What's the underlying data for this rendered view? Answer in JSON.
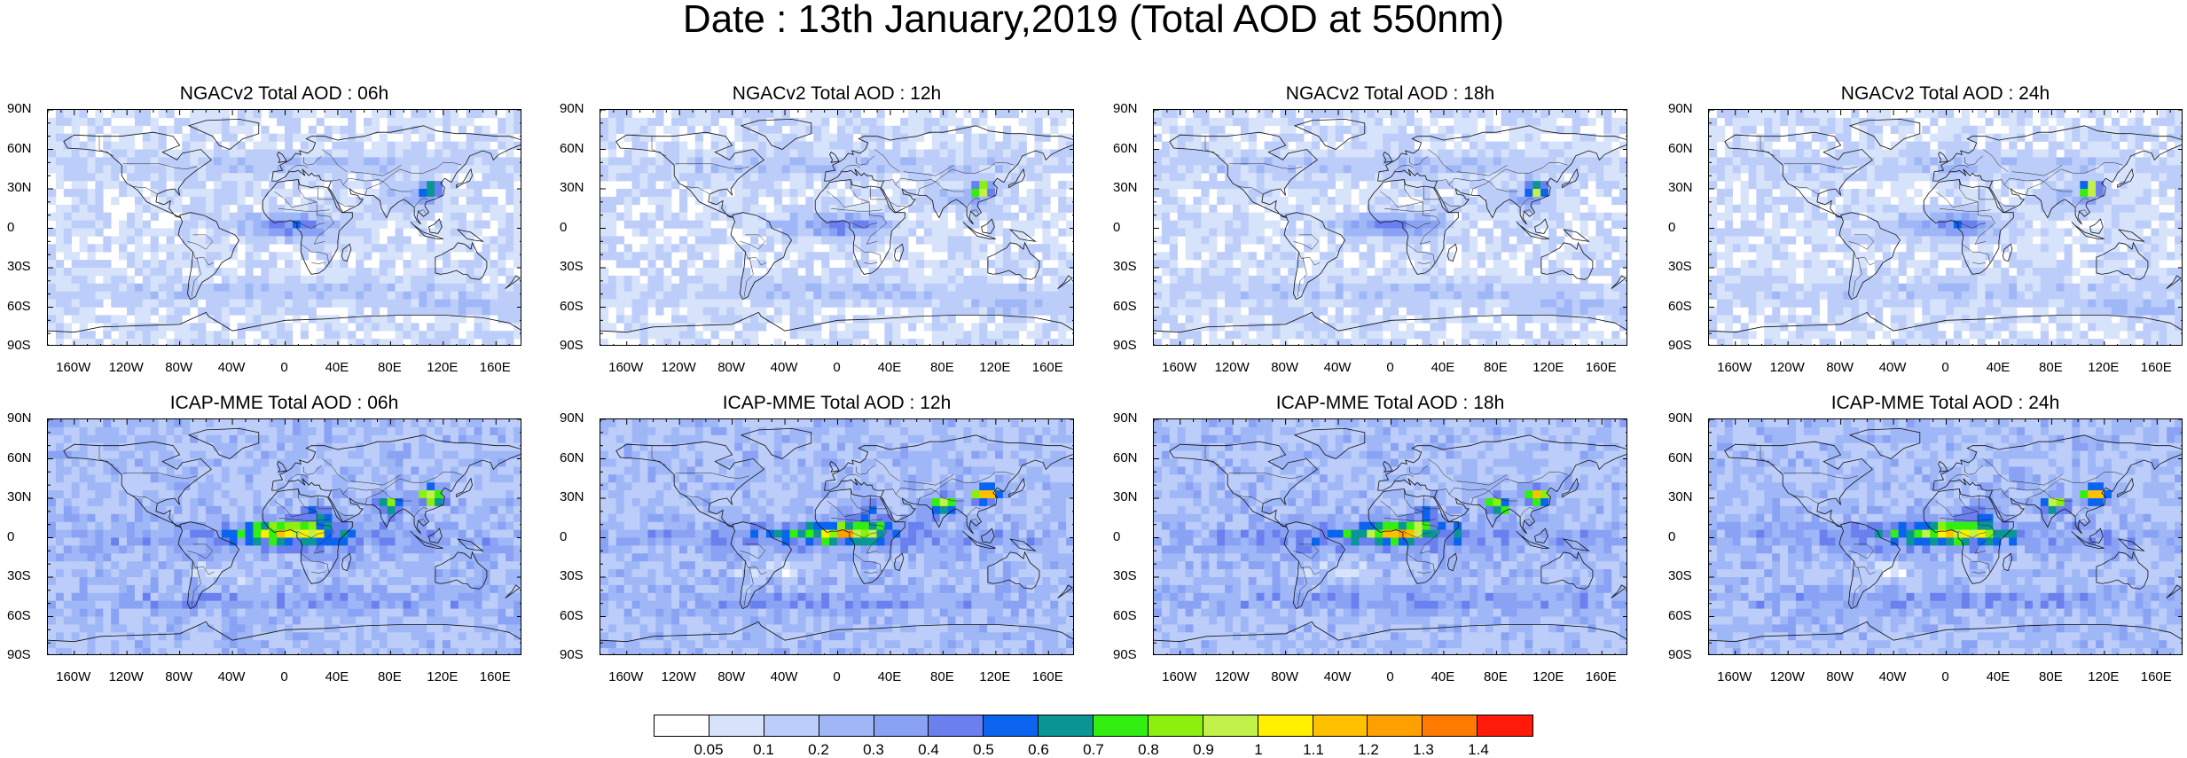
{
  "title": "Date : 13th January,2019 (Total AOD at 550nm)",
  "panels": [
    {
      "title": "NGACv2 Total AOD : 06h",
      "model": "ngac"
    },
    {
      "title": "NGACv2 Total AOD : 12h",
      "model": "ngac"
    },
    {
      "title": "NGACv2 Total AOD : 18h",
      "model": "ngac"
    },
    {
      "title": "NGACv2 Total AOD : 24h",
      "model": "ngac"
    },
    {
      "title": "ICAP-MME Total AOD : 06h",
      "model": "icap"
    },
    {
      "title": "ICAP-MME Total AOD : 12h",
      "model": "icap"
    },
    {
      "title": "ICAP-MME Total AOD : 18h",
      "model": "icap"
    },
    {
      "title": "ICAP-MME Total AOD : 24h",
      "model": "icap"
    }
  ],
  "lat_labels": [
    "90N",
    "60N",
    "30N",
    "0",
    "30S",
    "60S",
    "90S"
  ],
  "lon_labels": [
    "160W",
    "120W",
    "80W",
    "40W",
    "0",
    "40E",
    "80E",
    "120E",
    "160E"
  ],
  "lon_values": [
    -160,
    -120,
    -80,
    -40,
    0,
    40,
    80,
    120,
    160
  ],
  "colorbar": {
    "colors": [
      "#ffffff",
      "#d7e3fb",
      "#bccdf9",
      "#9fb7f7",
      "#8aa2f3",
      "#6a80ee",
      "#0a64f0",
      "#0b9696",
      "#33ee11",
      "#8cf00f",
      "#c2f24a",
      "#fff000",
      "#ffc000",
      "#ffa000",
      "#ff7a00",
      "#ff1a0a"
    ],
    "labels": [
      "0.05",
      "0.1",
      "0.2",
      "0.3",
      "0.4",
      "0.5",
      "0.6",
      "0.7",
      "0.8",
      "0.9",
      "1",
      "1.1",
      "1.2",
      "1.3",
      "1.4"
    ]
  }
}
